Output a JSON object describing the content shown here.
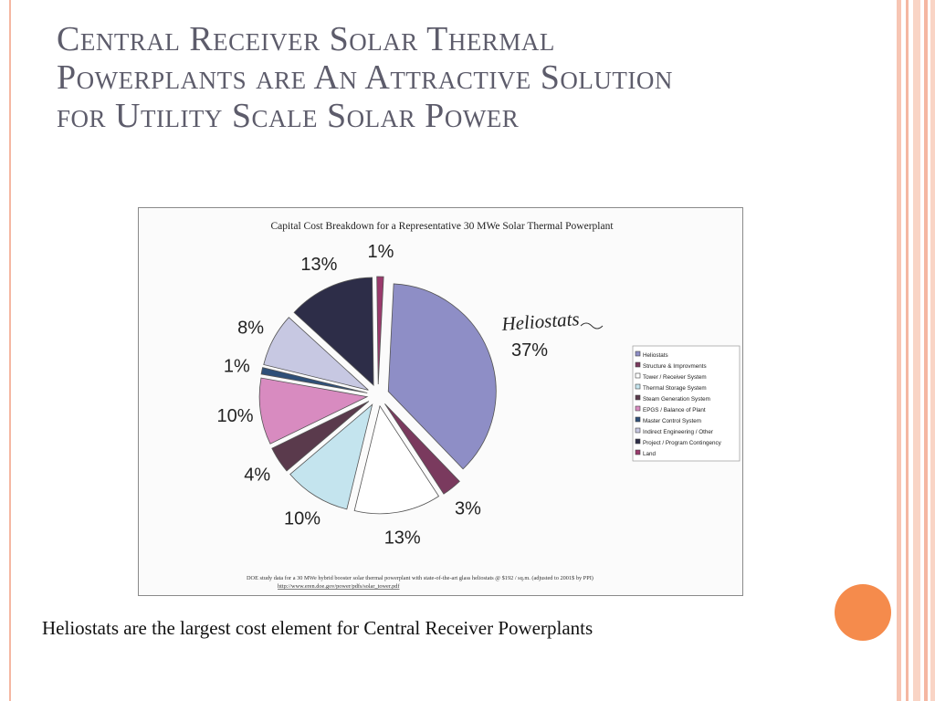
{
  "slide": {
    "title_lines": [
      "Central Receiver Solar Thermal",
      "Powerplants are An Attractive Solution",
      "for Utility Scale Solar Power"
    ],
    "caption": "Heliostats are the largest cost element for Central Receiver Powerplants",
    "colors": {
      "accent_dot": "#f58b4c",
      "stripes": "#f5b7a2",
      "title": "#5d5c6b"
    }
  },
  "chart_data": {
    "type": "pie",
    "title": "Capital Cost Breakdown for a Representative 30 MWe Solar Thermal Powerplant",
    "callout": "Heliostats",
    "slices": [
      {
        "name": "Heliostats",
        "value": 37,
        "label": "37%",
        "color": "#8e8ec6"
      },
      {
        "name": "Structure & Improvments",
        "value": 3,
        "label": "3%",
        "color": "#7a3a5e"
      },
      {
        "name": "Tower / Receiver System",
        "value": 13,
        "label": "13%",
        "color": "#ffffff"
      },
      {
        "name": "Thermal Storage System",
        "value": 10,
        "label": "10%",
        "color": "#c4e4ee"
      },
      {
        "name": "Steam Generation System",
        "value": 4,
        "label": "4%",
        "color": "#5a3a4c"
      },
      {
        "name": "EPGS / Balance of Plant",
        "value": 10,
        "label": "10%",
        "color": "#d88bc0"
      },
      {
        "name": "Master Control System",
        "value": 1,
        "label": "1%",
        "color": "#2e4f78"
      },
      {
        "name": "Indirect Engineering / Other",
        "value": 8,
        "label": "8%",
        "color": "#c7c8e2"
      },
      {
        "name": "Project / Program Contingency",
        "value": 13,
        "label": "13%",
        "color": "#2d2d48"
      },
      {
        "name": "Land",
        "value": 1,
        "label": "1%",
        "color": "#9a3a6c"
      }
    ],
    "legend_position": "right",
    "footnote_lines": [
      "DOE study data for a 30 MWe hybrid booster solar thermal powerplant with state-of-the-art glass heliostats @ $192 / sq.m. (adjusted to 2001$ by PPI)",
      "http://www.eren.doe.gov/power/pdfs/solar_tower.pdf"
    ]
  }
}
